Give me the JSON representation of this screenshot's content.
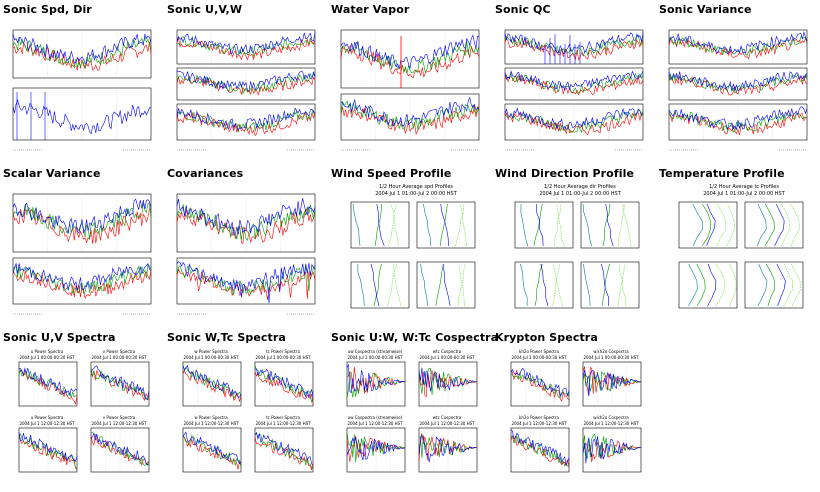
{
  "colors": {
    "red": "#ff0000",
    "green": "#009a00",
    "blue": "#0000ff",
    "lightgreen": "#66dd33",
    "teal": "#008080",
    "frame": "#000000",
    "grid": "#bbbbbb"
  },
  "rows": [
    {
      "cells": [
        {
          "id": "sonic-spd-dir",
          "title": "Sonic Spd, Dir",
          "kind": "ts2"
        },
        {
          "id": "sonic-uvw",
          "title": "Sonic U,V,W",
          "kind": "ts3"
        },
        {
          "id": "water-vapor",
          "title": "Water Vapor",
          "kind": "ts2w"
        },
        {
          "id": "sonic-qc",
          "title": "Sonic QC",
          "kind": "ts3q"
        },
        {
          "id": "sonic-variance",
          "title": "Sonic Variance",
          "kind": "ts3"
        }
      ]
    },
    {
      "cells": [
        {
          "id": "scalar-variance",
          "title": "Scalar Variance",
          "kind": "ts2s"
        },
        {
          "id": "covariances",
          "title": "Covariances",
          "kind": "ts2c"
        },
        {
          "id": "wind-speed-profile",
          "title": "Wind Speed Profile",
          "kind": "prof",
          "sub1": "1/2 Hour Average spd Profiles",
          "sub2": "2004 Jul 1 01:00-Jul 2 00:00 HST"
        },
        {
          "id": "wind-direction-profile",
          "title": "Wind Direction Profile",
          "kind": "prof",
          "sub1": "1/2 Hour Average dir Profiles",
          "sub2": "2004 Jul 1 01:00-Jul 2 00:00 HST"
        },
        {
          "id": "temperature-profile",
          "title": "Temperature Profile",
          "kind": "profv",
          "sub1": "1/2 Hour Average tc Profiles",
          "sub2": "2004 Jul 1 01:00-Jul 2 00:00 HST"
        }
      ]
    },
    {
      "cells": [
        {
          "id": "sonic-uv-spectra",
          "title": "Sonic U,V Spectra",
          "kind": "spec",
          "panels": [
            [
              "u Power Spectra",
              "2004 Jul 1 00:00-00:30 HST"
            ],
            [
              "v Power Spectra",
              "2004 Jul 1 00:00-00:30 HST"
            ],
            [
              "u Power Spectra",
              "2004 Jul 1 12:00-12:30 HST"
            ],
            [
              "v Power Spectra",
              "2004 Jul 1 12:00-12:30 HST"
            ]
          ]
        },
        {
          "id": "sonic-wtc-spectra",
          "title": "Sonic W,Tc Spectra",
          "kind": "spec",
          "panels": [
            [
              "w Power Spectra",
              "2004 Jul 1 00:00-00:30 HST"
            ],
            [
              "tc Power Spectra",
              "2004 Jul 1 00:00-00:30 HST"
            ],
            [
              "w Power Spectra",
              "2004 Jul 1 12:00-12:30 HST"
            ],
            [
              "tc Power Spectra",
              "2004 Jul 1 12:00-12:30 HST"
            ]
          ]
        },
        {
          "id": "sonic-uw-wtc-cospectra",
          "title": "Sonic U:W, W:Tc Cospectra",
          "kind": "cospec",
          "panels": [
            [
              "uw Cospectra (streamwise)",
              "2004 Jul 1 00:00-00:30 HST"
            ],
            [
              "wtc Cospectra",
              "2004 Jul 1 00:00-00:30 HST"
            ],
            [
              "uw Cospectra (streamwise)",
              "2004 Jul 1 12:00-12:30 HST"
            ],
            [
              "wtc Cospectra",
              "2004 Jul 1 12:00-12:30 HST"
            ]
          ]
        },
        {
          "id": "krypton-spectra",
          "title": "Krypton Spectra",
          "kind": "kspec",
          "panels": [
            [
              "kh2o Power Spectra",
              "2004 Jul 1 00:00-00:30 HST"
            ],
            [
              "w.kh2o Cospectra",
              "2004 Jul 1 00:00-00:30 HST"
            ],
            [
              "kh2o Power Spectra",
              "2004 Jul 1 12:00-12:30 HST"
            ],
            [
              "w.kh2o Cospectra",
              "2004 Jul 1 12:00-12:30 HST"
            ]
          ]
        }
      ]
    }
  ]
}
